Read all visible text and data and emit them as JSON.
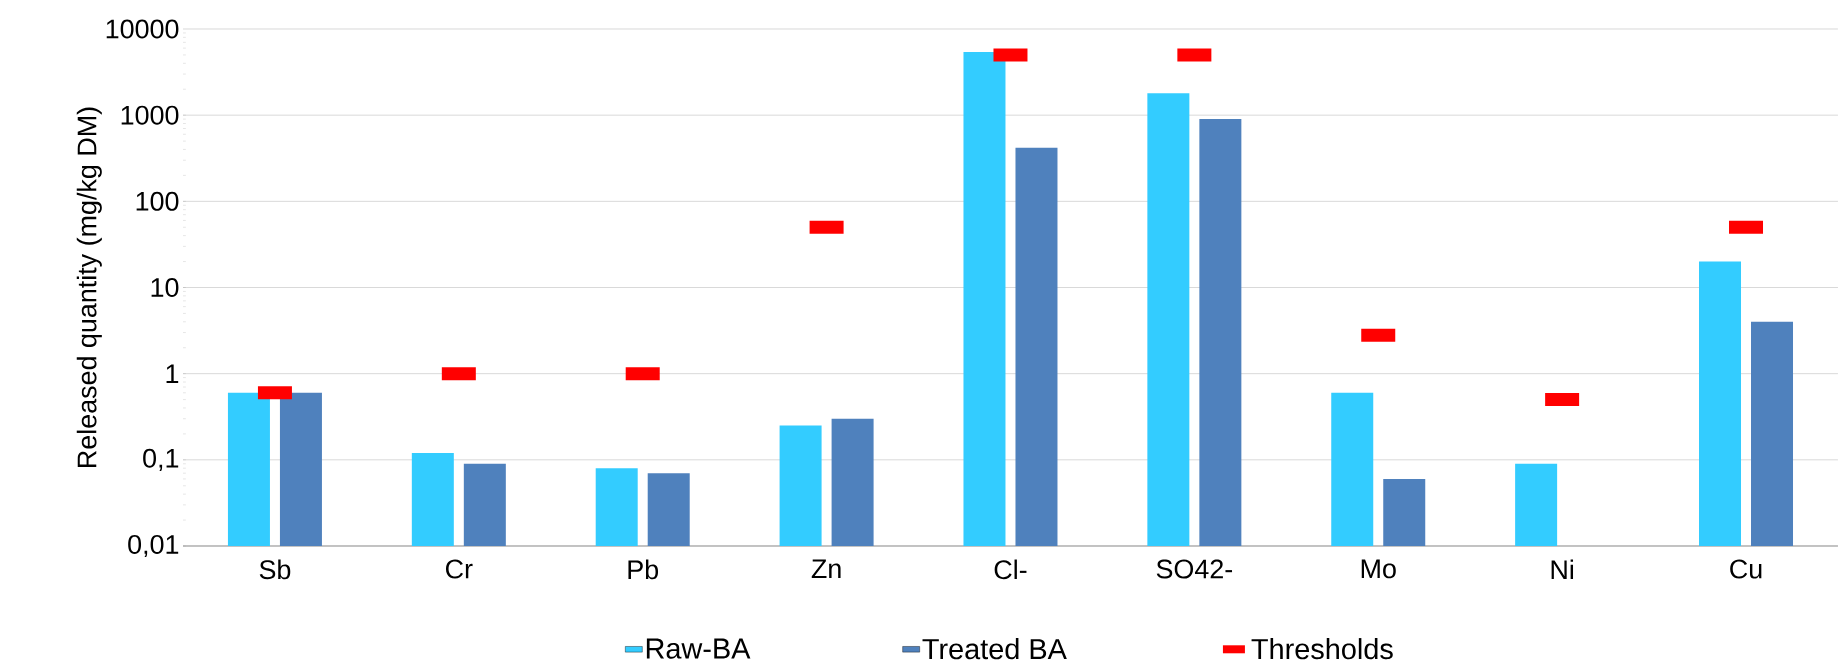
{
  "chart_data": {
    "type": "bar",
    "ylabel": "Released quantity (mg/kg DM)",
    "categories": [
      "Sb",
      "Cr",
      "Pb",
      "Zn",
      "Cl-",
      "SO42-",
      "Mo",
      "Ni",
      "Cu"
    ],
    "series": [
      {
        "name": "Raw-BA",
        "color": "#33ccff",
        "values": [
          0.6,
          0.12,
          0.08,
          0.25,
          5400,
          1800,
          0.6,
          0.09,
          20
        ]
      },
      {
        "name": "Treated BA",
        "color": "#4f81bd",
        "values": [
          0.6,
          0.09,
          0.07,
          0.3,
          420,
          900,
          0.06,
          null,
          4
        ]
      },
      {
        "name": "Thresholds",
        "type": "scatter",
        "color": "#ff0000",
        "values": [
          0.6,
          1,
          1,
          50,
          5000,
          5000,
          2.8,
          0.5,
          50
        ]
      }
    ],
    "log": true,
    "ylim": [
      0.01,
      10000
    ],
    "yticks": [
      {
        "value": 0.01,
        "label": "0,01"
      },
      {
        "value": 0.1,
        "label": "0,1"
      },
      1,
      10,
      100,
      1000,
      10000
    ],
    "grid": "y",
    "legend": "bottom"
  }
}
